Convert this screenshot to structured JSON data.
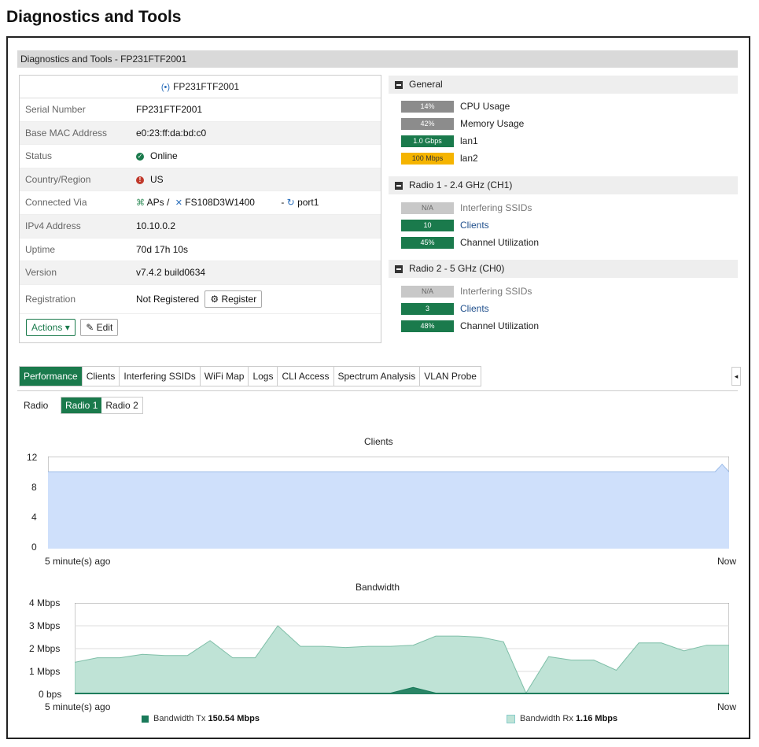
{
  "page_title": "Diagnostics and Tools",
  "window_title": "Diagnostics and Tools - FP231FTF2001",
  "device": {
    "header": "FP231FTF2001",
    "rows": [
      {
        "label": "Serial Number",
        "value": "FP231FTF2001"
      },
      {
        "label": "Base MAC Address",
        "value": "e0:23:ff:da:bd:c0"
      },
      {
        "label": "Status",
        "value": "Online"
      },
      {
        "label": "Country/Region",
        "value": "US"
      },
      {
        "label": "Connected Via",
        "aps": "APs /",
        "switch": "FS108D3W1400",
        "sep": "-",
        "port": "port1"
      },
      {
        "label": "IPv4 Address",
        "value": "10.10.0.2"
      },
      {
        "label": "Uptime",
        "value": "70d 17h 10s"
      },
      {
        "label": "Version",
        "value": "v7.4.2 build0634"
      },
      {
        "label": "Registration",
        "value": "Not Registered",
        "button": "Register"
      }
    ],
    "actions_label": "Actions",
    "edit_label": "Edit"
  },
  "general": {
    "title": "General",
    "items": [
      {
        "pill": "14%",
        "label": "CPU Usage"
      },
      {
        "pill": "42%",
        "label": "Memory Usage"
      },
      {
        "pill": "1.0 Gbps",
        "label": "lan1"
      },
      {
        "pill": "100 Mbps",
        "label": "lan2"
      }
    ]
  },
  "radio1": {
    "title": "Radio 1 - 2.4 GHz (CH1)",
    "items": [
      {
        "pill": "N/A",
        "label": "Interfering SSIDs"
      },
      {
        "pill": "10",
        "label": "Clients"
      },
      {
        "pill": "45%",
        "label": "Channel Utilization"
      }
    ]
  },
  "radio2": {
    "title": "Radio 2 - 5 GHz (CH0)",
    "items": [
      {
        "pill": "N/A",
        "label": "Interfering SSIDs"
      },
      {
        "pill": "3",
        "label": "Clients"
      },
      {
        "pill": "48%",
        "label": "Channel Utilization"
      }
    ]
  },
  "tabs": [
    "Performance",
    "Clients",
    "Interfering SSIDs",
    "WiFi Map",
    "Logs",
    "CLI Access",
    "Spectrum Analysis",
    "VLAN Probe"
  ],
  "radio_selector": {
    "label": "Radio",
    "options": [
      "Radio 1",
      "Radio 2"
    ],
    "selected": "Radio 1"
  },
  "chart_data": [
    {
      "type": "area",
      "title": "Clients",
      "x_start": "5 minute(s) ago",
      "x_end": "Now",
      "yticks": [
        "12",
        "8",
        "4",
        "0"
      ],
      "ylim": [
        0,
        12
      ],
      "grid": true,
      "series": [
        {
          "values": [
            10,
            10,
            10,
            10,
            10,
            10,
            10,
            10,
            10,
            10,
            10,
            10,
            10,
            10,
            10,
            10,
            10,
            10,
            10,
            10,
            10,
            10,
            10,
            10,
            10,
            10,
            10,
            10,
            10,
            10,
            10,
            10,
            10,
            10,
            10,
            10,
            10,
            10,
            10,
            10,
            10,
            10,
            10,
            10,
            10,
            10,
            10,
            10,
            10,
            10,
            10,
            10,
            10,
            10,
            10,
            10,
            10,
            10,
            10,
            10,
            10,
            10,
            10,
            10,
            10,
            10,
            10,
            10,
            10,
            10,
            10,
            10,
            10,
            10,
            10,
            10,
            10,
            10,
            10,
            10,
            10,
            10,
            10,
            10,
            10,
            10,
            10,
            10,
            10,
            10,
            10,
            10,
            10,
            10,
            10,
            10,
            11,
            10
          ]
        }
      ],
      "color": "#cfe0fb",
      "line_color": "#9bbbe8"
    },
    {
      "type": "area",
      "title": "Bandwidth",
      "x_start": "5 minute(s) ago",
      "x_end": "Now",
      "yticks": [
        "4 Mbps",
        "3 Mbps",
        "2 Mbps",
        "1 Mbps",
        "0 bps"
      ],
      "ylim": [
        0,
        4
      ],
      "grid": true,
      "series": [
        {
          "name": "Bandwidth Tx",
          "total": "150.54 Mbps",
          "color": "#1a7a5a",
          "values": [
            0.05,
            0.05,
            0.05,
            0.05,
            0.05,
            0.05,
            0.05,
            0.05,
            0.05,
            0.05,
            0.05,
            0.05,
            0.05,
            0.05,
            0.05,
            0.3,
            0.05,
            0.05,
            0.05,
            0.05,
            0.05,
            0.05,
            0.05,
            0.05,
            0.05,
            0.05,
            0.05,
            0.05,
            0.05,
            0.05
          ]
        },
        {
          "name": "Bandwidth Rx",
          "total": "1.16 Mbps",
          "color": "#bfe3d6",
          "values": [
            1.4,
            1.6,
            1.6,
            1.75,
            1.7,
            1.7,
            2.35,
            1.6,
            1.6,
            3.0,
            2.1,
            2.1,
            2.05,
            2.1,
            2.1,
            2.15,
            2.55,
            2.55,
            2.5,
            2.3,
            0.05,
            1.65,
            1.5,
            1.5,
            1.05,
            2.25,
            2.25,
            1.9,
            2.15,
            2.15
          ]
        }
      ]
    }
  ]
}
